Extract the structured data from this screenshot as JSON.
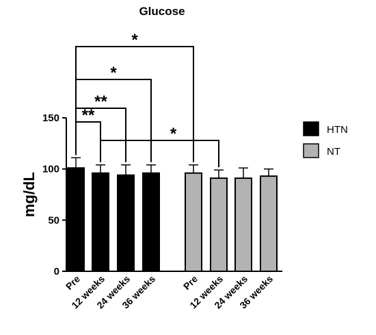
{
  "chart_data": {
    "type": "bar",
    "title": "Glucose",
    "ylabel": "mg/dL",
    "xlabel": "",
    "ylim": [
      0,
      150
    ],
    "yticks": [
      0,
      50,
      100,
      150
    ],
    "grid": false,
    "legend_position": "right",
    "series": [
      {
        "name": "HTN",
        "color": "#000000",
        "categories": [
          "Pre",
          "12 weeks",
          "24 weeks",
          "36 weeks"
        ],
        "values": [
          101,
          96,
          94,
          96
        ],
        "errors": [
          10,
          8,
          10,
          8
        ]
      },
      {
        "name": "NT",
        "color": "#b3b3b3",
        "categories": [
          "Pre",
          "12 weeks",
          "24 weeks",
          "36 weeks"
        ],
        "values": [
          96,
          91,
          91,
          93
        ],
        "errors": [
          8,
          8,
          10,
          7
        ]
      }
    ],
    "annotations": [
      {
        "from": "HTN Pre",
        "to": "HTN 12 weeks",
        "label": "**"
      },
      {
        "from": "HTN Pre",
        "to": "HTN 24 weeks",
        "label": "**"
      },
      {
        "from": "HTN Pre",
        "to": "HTN 36 weeks",
        "label": "*"
      },
      {
        "from": "HTN Pre",
        "to": "NT Pre",
        "label": "*"
      },
      {
        "from": "HTN 12 weeks",
        "to": "NT 12 weeks",
        "label": "*"
      }
    ]
  }
}
